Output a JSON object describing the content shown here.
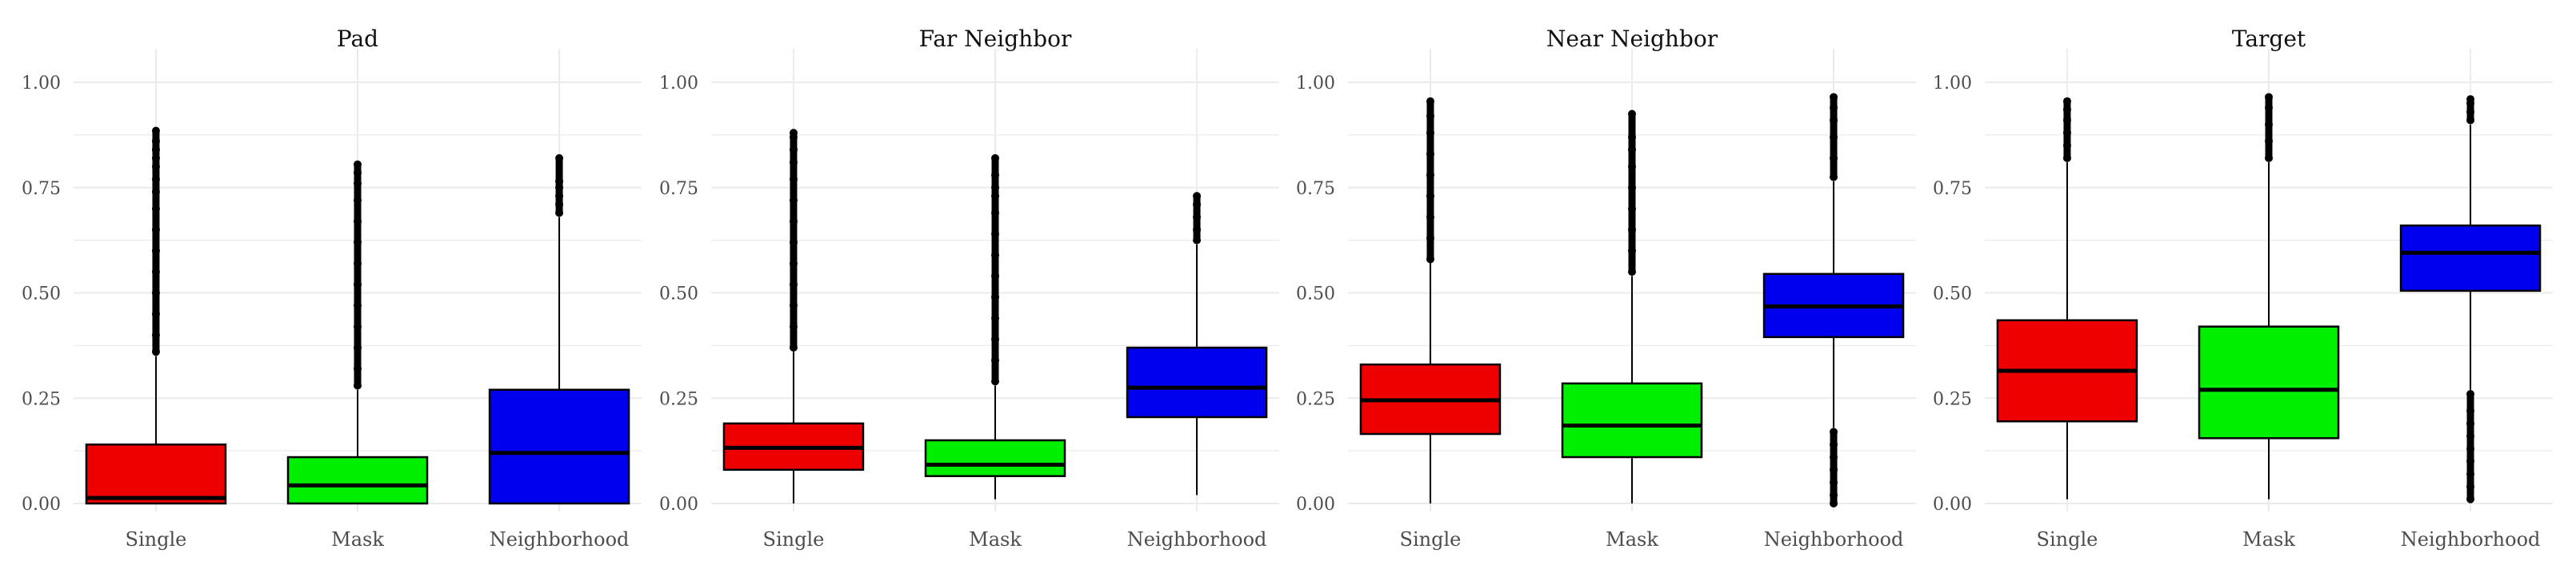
{
  "chart_data": [
    {
      "type": "box",
      "title": "Pad",
      "categories": [
        "Single",
        "Mask",
        "Neighborhood"
      ],
      "ylim": [
        0,
        1
      ],
      "yticks": [
        "0.00",
        "0.25",
        "0.50",
        "0.75",
        "1.00"
      ],
      "grid": true,
      "boxes": [
        {
          "category": "Single",
          "color": "#ee0000",
          "whisker_low": 0.0,
          "q1": 0.0,
          "median": 0.013,
          "q3": 0.14,
          "whisker_high": 0.35,
          "outliers": [
            0.36,
            0.4,
            0.45,
            0.5,
            0.55,
            0.6,
            0.65,
            0.7,
            0.74,
            0.77,
            0.8,
            0.82,
            0.84,
            0.86,
            0.885
          ]
        },
        {
          "category": "Mask",
          "color": "#00ee00",
          "whisker_low": 0.0,
          "q1": 0.0,
          "median": 0.043,
          "q3": 0.11,
          "whisker_high": 0.27,
          "outliers": [
            0.28,
            0.32,
            0.37,
            0.42,
            0.47,
            0.52,
            0.57,
            0.62,
            0.67,
            0.72,
            0.76,
            0.785,
            0.805
          ]
        },
        {
          "category": "Neighborhood",
          "color": "#0000ee",
          "whisker_low": 0.0,
          "q1": 0.0,
          "median": 0.12,
          "q3": 0.27,
          "whisker_high": 0.68,
          "outliers": [
            0.69,
            0.71,
            0.73,
            0.75,
            0.765,
            0.82
          ]
        }
      ]
    },
    {
      "type": "box",
      "title": "Far Neighbor",
      "categories": [
        "Single",
        "Mask",
        "Neighborhood"
      ],
      "ylim": [
        0,
        1
      ],
      "yticks": [
        "0.00",
        "0.25",
        "0.50",
        "0.75",
        "1.00"
      ],
      "grid": true,
      "boxes": [
        {
          "category": "Single",
          "color": "#ee0000",
          "whisker_low": 0.0,
          "q1": 0.08,
          "median": 0.132,
          "q3": 0.19,
          "whisker_high": 0.36,
          "outliers": [
            0.37,
            0.42,
            0.47,
            0.52,
            0.57,
            0.62,
            0.67,
            0.72,
            0.77,
            0.81,
            0.84,
            0.87,
            0.88
          ]
        },
        {
          "category": "Mask",
          "color": "#00ee00",
          "whisker_low": 0.01,
          "q1": 0.065,
          "median": 0.092,
          "q3": 0.15,
          "whisker_high": 0.28,
          "outliers": [
            0.29,
            0.34,
            0.39,
            0.44,
            0.49,
            0.54,
            0.59,
            0.64,
            0.69,
            0.73,
            0.75,
            0.78,
            0.82
          ]
        },
        {
          "category": "Neighborhood",
          "color": "#0000ee",
          "whisker_low": 0.02,
          "q1": 0.205,
          "median": 0.275,
          "q3": 0.37,
          "whisker_high": 0.615,
          "outliers": [
            0.625,
            0.65,
            0.68,
            0.71,
            0.73
          ]
        }
      ]
    },
    {
      "type": "box",
      "title": "Near Neighbor",
      "categories": [
        "Single",
        "Mask",
        "Neighborhood"
      ],
      "ylim": [
        0,
        1
      ],
      "yticks": [
        "0.00",
        "0.25",
        "0.50",
        "0.75",
        "1.00"
      ],
      "grid": true,
      "boxes": [
        {
          "category": "Single",
          "color": "#ee0000",
          "whisker_low": 0.0,
          "q1": 0.165,
          "median": 0.245,
          "q3": 0.33,
          "whisker_high": 0.575,
          "outliers": [
            0.58,
            0.63,
            0.68,
            0.73,
            0.78,
            0.83,
            0.88,
            0.92,
            0.955
          ]
        },
        {
          "category": "Mask",
          "color": "#00ee00",
          "whisker_low": 0.0,
          "q1": 0.11,
          "median": 0.185,
          "q3": 0.285,
          "whisker_high": 0.54,
          "outliers": [
            0.55,
            0.6,
            0.65,
            0.7,
            0.75,
            0.8,
            0.84,
            0.87,
            0.925
          ]
        },
        {
          "category": "Neighborhood",
          "color": "#0000ee",
          "whisker_low": 0.18,
          "q1": 0.395,
          "median": 0.468,
          "q3": 0.545,
          "whisker_high": 0.765,
          "outliers": [
            0.0,
            0.02,
            0.05,
            0.08,
            0.11,
            0.14,
            0.17,
            0.775,
            0.82,
            0.87,
            0.91,
            0.94,
            0.965
          ]
        }
      ]
    },
    {
      "type": "box",
      "title": "Target",
      "categories": [
        "Single",
        "Mask",
        "Neighborhood"
      ],
      "ylim": [
        0,
        1
      ],
      "yticks": [
        "0.00",
        "0.25",
        "0.50",
        "0.75",
        "1.00"
      ],
      "grid": true,
      "boxes": [
        {
          "category": "Single",
          "color": "#ee0000",
          "whisker_low": 0.01,
          "q1": 0.195,
          "median": 0.315,
          "q3": 0.435,
          "whisker_high": 0.81,
          "outliers": [
            0.82,
            0.85,
            0.88,
            0.91,
            0.935,
            0.955
          ]
        },
        {
          "category": "Mask",
          "color": "#00ee00",
          "whisker_low": 0.01,
          "q1": 0.155,
          "median": 0.27,
          "q3": 0.42,
          "whisker_high": 0.81,
          "outliers": [
            0.82,
            0.86,
            0.9,
            0.94,
            0.965
          ]
        },
        {
          "category": "Neighborhood",
          "color": "#0000ee",
          "whisker_low": 0.27,
          "q1": 0.505,
          "median": 0.595,
          "q3": 0.66,
          "whisker_high": 0.9,
          "outliers": [
            0.01,
            0.04,
            0.07,
            0.1,
            0.13,
            0.16,
            0.19,
            0.22,
            0.26,
            0.91,
            0.93,
            0.95,
            0.96
          ]
        }
      ]
    }
  ]
}
